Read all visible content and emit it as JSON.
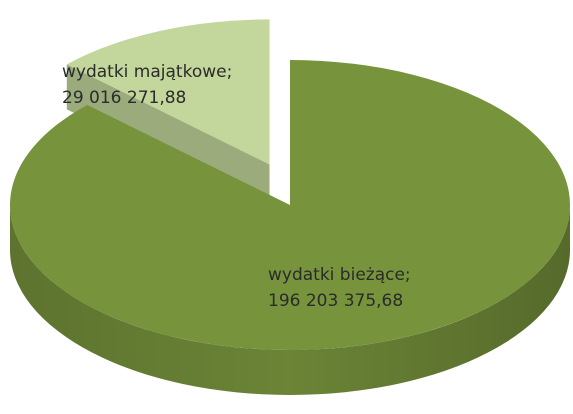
{
  "chart_data": {
    "type": "pie",
    "categories": [
      "wydatki bieżące;",
      "wydatki majątkowe;"
    ],
    "values": [
      196203375.68,
      29016271.88
    ],
    "value_labels": [
      "196 203 375,68",
      "29 016 271,88"
    ],
    "colors": [
      "#77933c",
      "#c3d69b"
    ]
  }
}
